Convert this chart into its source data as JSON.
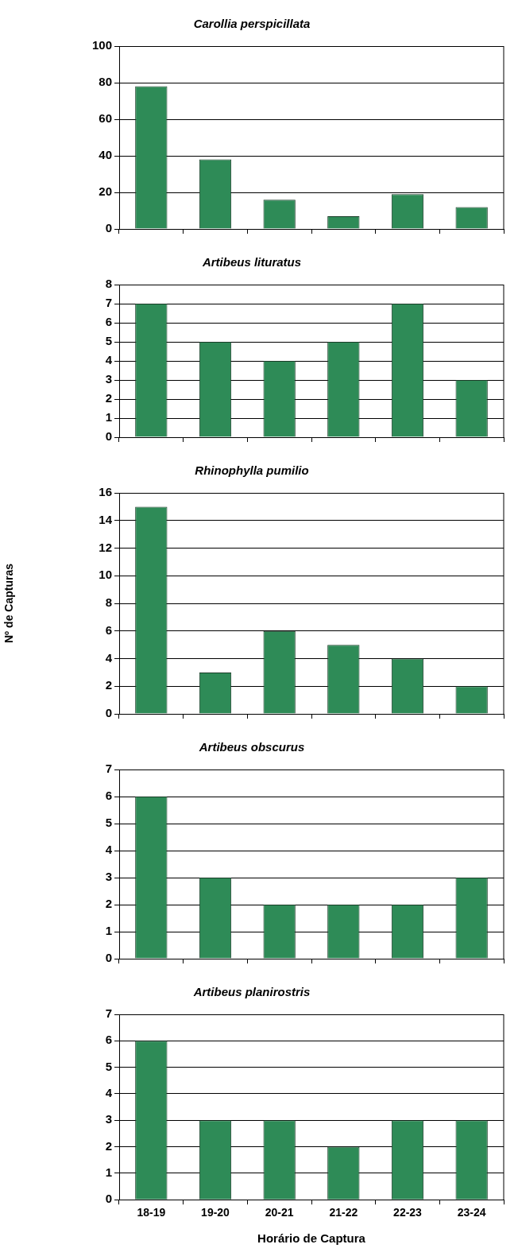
{
  "chart_data": [
    {
      "type": "bar",
      "title": "Carollia perspicillata",
      "categories": [
        null,
        null,
        null,
        null,
        null,
        null
      ],
      "values": [
        78,
        38,
        16,
        7,
        19,
        12
      ],
      "color": "#2e8b57",
      "ylim": [
        0,
        100
      ],
      "yticks": [
        0,
        20,
        40,
        60,
        80,
        100
      ],
      "grid": "y",
      "tick_labels": "y"
    },
    {
      "type": "bar",
      "title": "Artibeus lituratus",
      "categories": [
        null,
        null,
        null,
        null,
        null,
        null
      ],
      "values": [
        7,
        5,
        4,
        5,
        7,
        3
      ],
      "color": "#2e8b57",
      "ylim": [
        0,
        8
      ],
      "yticks": [
        0,
        1,
        2,
        3,
        4,
        5,
        6,
        7,
        8
      ],
      "grid": "y",
      "tick_labels": "y"
    },
    {
      "type": "bar",
      "title": "Rhinophylla pumilio",
      "ylabel": "Nº de Capturas",
      "categories": [
        null,
        null,
        null,
        null,
        null,
        null
      ],
      "values": [
        15,
        3,
        6,
        5,
        4,
        2
      ],
      "color": "#2e8b57",
      "ylim": [
        0,
        16
      ],
      "yticks": [
        0,
        2,
        4,
        6,
        8,
        10,
        12,
        14,
        16
      ],
      "grid": "y",
      "tick_labels": "y"
    },
    {
      "type": "bar",
      "title": "Artibeus obscurus",
      "categories": [
        null,
        null,
        null,
        null,
        null,
        null
      ],
      "values": [
        6,
        3,
        2,
        2,
        2,
        3
      ],
      "color": "#2e8b57",
      "ylim": [
        0,
        7
      ],
      "yticks": [
        0,
        1,
        2,
        3,
        4,
        5,
        6,
        7
      ],
      "grid": "y",
      "tick_labels": "y"
    },
    {
      "type": "bar",
      "title": "Artibeus planirostris",
      "xlabel": "Horário de Captura",
      "categories": [
        "18-19",
        "19-20",
        "20-21",
        "21-22",
        "22-23",
        "23-24"
      ],
      "values": [
        6,
        3,
        3,
        2,
        3,
        3
      ],
      "color": "#2e8b57",
      "ylim": [
        0,
        7
      ],
      "yticks": [
        0,
        1,
        2,
        3,
        4,
        5,
        6,
        7
      ],
      "grid": "y"
    }
  ]
}
